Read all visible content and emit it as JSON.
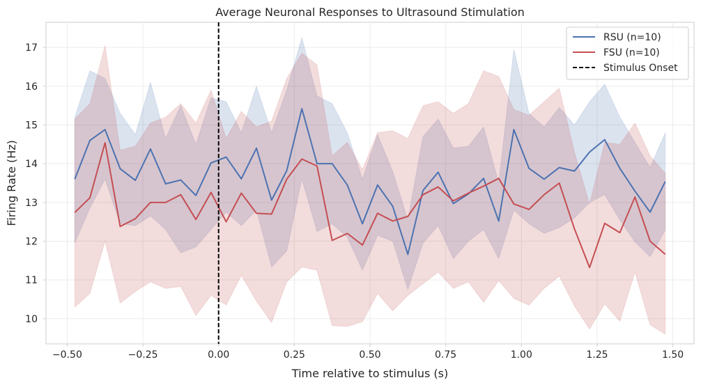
{
  "chart_data": {
    "type": "line",
    "title": "Average Neuronal Responses to Ultrasound Stimulation",
    "xlabel": "Time relative to stimulus (s)",
    "ylabel": "Firing Rate (Hz)",
    "xlim": [
      -0.57,
      1.57
    ],
    "ylim": [
      9.35,
      17.65
    ],
    "xticks": [
      -0.5,
      -0.25,
      0.0,
      0.25,
      0.5,
      0.75,
      1.0,
      1.25,
      1.5
    ],
    "xtick_labels": [
      "−0.50",
      "−0.25",
      "0.00",
      "0.25",
      "0.50",
      "0.75",
      "1.00",
      "1.25",
      "1.50"
    ],
    "yticks": [
      10,
      11,
      12,
      13,
      14,
      15,
      16,
      17
    ],
    "ytick_labels": [
      "10",
      "11",
      "12",
      "13",
      "14",
      "15",
      "16",
      "17"
    ],
    "grid": true,
    "legend_position": "top-right",
    "x": [
      -0.475,
      -0.425,
      -0.375,
      -0.325,
      -0.275,
      -0.225,
      -0.175,
      -0.125,
      -0.075,
      -0.025,
      0.025,
      0.075,
      0.125,
      0.175,
      0.225,
      0.275,
      0.325,
      0.375,
      0.425,
      0.475,
      0.525,
      0.575,
      0.625,
      0.675,
      0.725,
      0.775,
      0.825,
      0.875,
      0.925,
      0.975,
      1.025,
      1.075,
      1.125,
      1.175,
      1.225,
      1.275,
      1.325,
      1.375,
      1.425,
      1.475
    ],
    "series": [
      {
        "name": "RSU (n=10)",
        "color": "#4c72b0",
        "values": [
          13.6,
          14.6,
          14.88,
          13.87,
          13.57,
          14.38,
          13.48,
          13.58,
          13.18,
          14.02,
          14.17,
          13.61,
          14.4,
          13.06,
          13.82,
          15.42,
          14.0,
          14.0,
          13.45,
          12.45,
          13.45,
          12.9,
          11.66,
          13.31,
          13.78,
          12.97,
          13.22,
          13.62,
          12.52,
          14.88,
          13.88,
          13.6,
          13.9,
          13.81,
          14.3,
          14.62,
          13.88,
          13.29,
          12.75,
          13.54
        ],
        "upper": [
          15.2,
          16.4,
          16.2,
          15.3,
          14.75,
          16.1,
          14.65,
          15.5,
          14.5,
          15.7,
          15.6,
          14.8,
          16.0,
          14.8,
          15.9,
          17.25,
          15.75,
          15.55,
          14.8,
          13.6,
          14.75,
          13.8,
          12.55,
          14.7,
          15.15,
          14.4,
          14.45,
          14.95,
          13.5,
          16.95,
          15.3,
          14.95,
          15.45,
          15.0,
          15.6,
          16.05,
          15.2,
          14.55,
          13.9,
          14.8
        ],
        "lower": [
          11.95,
          12.85,
          13.6,
          12.45,
          12.4,
          12.65,
          12.3,
          11.7,
          11.85,
          12.3,
          12.75,
          12.4,
          12.8,
          11.33,
          11.75,
          13.6,
          12.25,
          12.45,
          12.1,
          11.25,
          12.15,
          12.0,
          10.75,
          11.95,
          12.4,
          11.55,
          12.0,
          12.3,
          11.55,
          12.8,
          12.45,
          12.2,
          12.35,
          12.6,
          13.0,
          13.2,
          12.55,
          11.98,
          11.6,
          12.28
        ]
      },
      {
        "name": "FSU (n=10)",
        "color": "#c44e52",
        "values": [
          12.74,
          13.12,
          14.54,
          12.38,
          12.58,
          13.0,
          13.0,
          13.2,
          12.56,
          13.26,
          12.5,
          13.24,
          12.72,
          12.7,
          13.6,
          14.12,
          13.94,
          12.02,
          12.2,
          11.9,
          12.72,
          12.52,
          12.64,
          13.2,
          13.4,
          13.04,
          13.24,
          13.42,
          13.62,
          12.96,
          12.82,
          13.2,
          13.5,
          12.32,
          11.32,
          12.46,
          12.22,
          13.14,
          12.0,
          11.66
        ],
        "upper": [
          15.15,
          15.55,
          17.05,
          14.35,
          14.45,
          15.05,
          15.2,
          15.55,
          15.05,
          15.9,
          14.65,
          15.35,
          14.95,
          15.1,
          16.2,
          16.85,
          16.55,
          14.2,
          14.55,
          13.85,
          14.8,
          14.85,
          14.65,
          15.5,
          15.6,
          15.3,
          15.55,
          16.4,
          16.25,
          15.4,
          15.25,
          15.6,
          15.95,
          14.3,
          12.95,
          14.55,
          14.5,
          15.05,
          14.2,
          13.75
        ],
        "lower": [
          10.3,
          10.65,
          12.0,
          10.4,
          10.7,
          10.95,
          10.78,
          10.83,
          10.08,
          10.6,
          10.35,
          11.12,
          10.45,
          9.9,
          10.95,
          11.33,
          11.25,
          9.82,
          9.8,
          9.92,
          10.65,
          10.2,
          10.6,
          10.9,
          11.2,
          10.78,
          10.95,
          10.42,
          10.98,
          10.52,
          10.35,
          10.78,
          11.1,
          10.33,
          9.73,
          10.38,
          9.93,
          11.2,
          9.84,
          9.6
        ]
      }
    ],
    "annotations": [
      {
        "type": "vline",
        "x": 0.0,
        "label": "Stimulus Onset",
        "color": "#000000",
        "style": "dashed"
      }
    ],
    "legend": [
      "RSU (n=10)",
      "FSU (n=10)",
      "Stimulus Onset"
    ]
  }
}
